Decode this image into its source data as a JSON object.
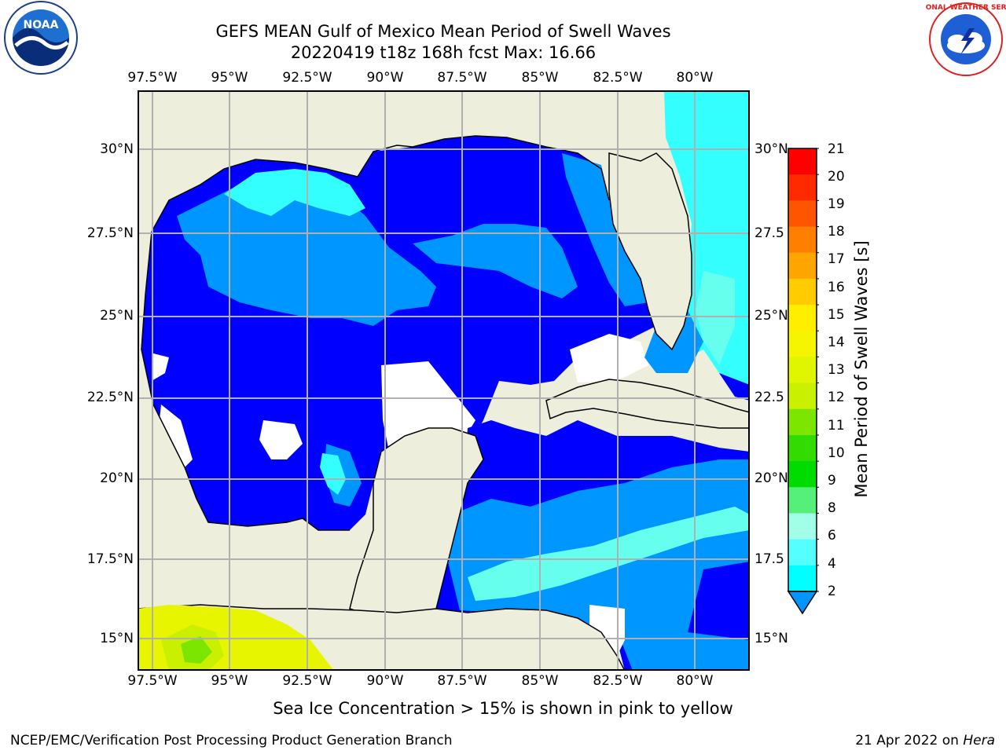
{
  "title_line1": "GEFS MEAN Gulf of Mexico Mean Period of Swell Waves",
  "title_line2": "20220419 t18z 168h fcst   Max: 16.66",
  "lon_labels": [
    "97.5°W",
    "95°W",
    "92.5°W",
    "90°W",
    "87.5°W",
    "85°W",
    "82.5°W",
    "80°W"
  ],
  "lat_labels_left": [
    "30°N",
    "27.5°N",
    "25°N",
    "22.5°N",
    "20°N",
    "17.5°N",
    "15°N"
  ],
  "lat_labels_right": [
    "30°N",
    "27.5",
    "25°N",
    "22.5",
    "20°N",
    "17.5",
    "15°N"
  ],
  "colorbar": {
    "label": "Mean Period of Swell Waves [s]",
    "ticks": [
      "21",
      "20",
      "19",
      "18",
      "17",
      "16",
      "15",
      "14",
      "13",
      "12",
      "11",
      "10",
      "9",
      "8",
      "6",
      "4",
      "2"
    ],
    "colors": [
      "#ff0000",
      "#ff2a00",
      "#ff5500",
      "#ff7f00",
      "#ffa500",
      "#ffcc00",
      "#ffee00",
      "#f5f500",
      "#e0f500",
      "#c8f000",
      "#7de600",
      "#32dc00",
      "#00dc00",
      "#55f07a",
      "#a0ffe6",
      "#55ffff",
      "#00ffff",
      "#0096ff"
    ]
  },
  "caption": "Sea Ice Concentration > 15% is shown in pink to yellow",
  "footer_left": "NCEP/EMC/Verification Post Processing Product Generation Branch",
  "footer_date": "21 Apr 2022 on ",
  "footer_machine": "Hera",
  "logos": {
    "noaa_text": "NOAA",
    "noaa_ring": "NATIONAL OCEANIC AND ATMOSPHERIC ADMINISTRATION · U.S. DEPARTMENT OF COMMERCE",
    "nws_ring": "NATIONAL WEATHER SERVICE"
  },
  "map_colors": {
    "land": "#eeeedc",
    "deep_blue": "#0000ff",
    "mid_blue": "#0096ff",
    "cyan": "#33ffff",
    "light_cyan": "#66ffee"
  }
}
